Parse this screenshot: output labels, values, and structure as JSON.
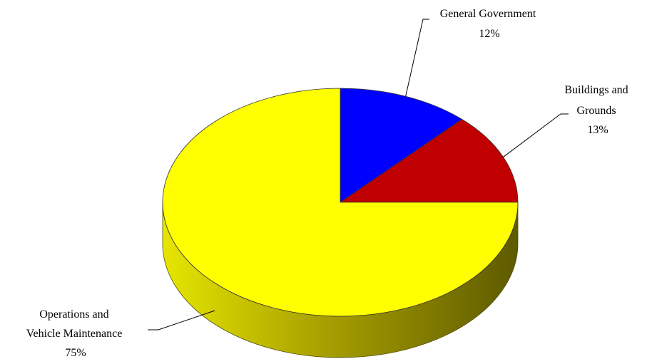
{
  "chart_data": {
    "type": "pie",
    "title": "",
    "labels": [
      "General Government",
      "Buildings and Grounds",
      "Operations and Vehicle Maintenance"
    ],
    "values": [
      12,
      13,
      75
    ],
    "unit": "%",
    "value_labels": [
      "12%",
      "13%",
      "75%"
    ],
    "label_lines": [
      [
        "General Government"
      ],
      [
        "Buildings and",
        "Grounds"
      ],
      [
        "Operations and",
        "Vehicle Maintenance"
      ]
    ],
    "colors": [
      "#0000ff",
      "#c00000",
      "#ffff00"
    ],
    "style": "3d",
    "legend": "none"
  }
}
